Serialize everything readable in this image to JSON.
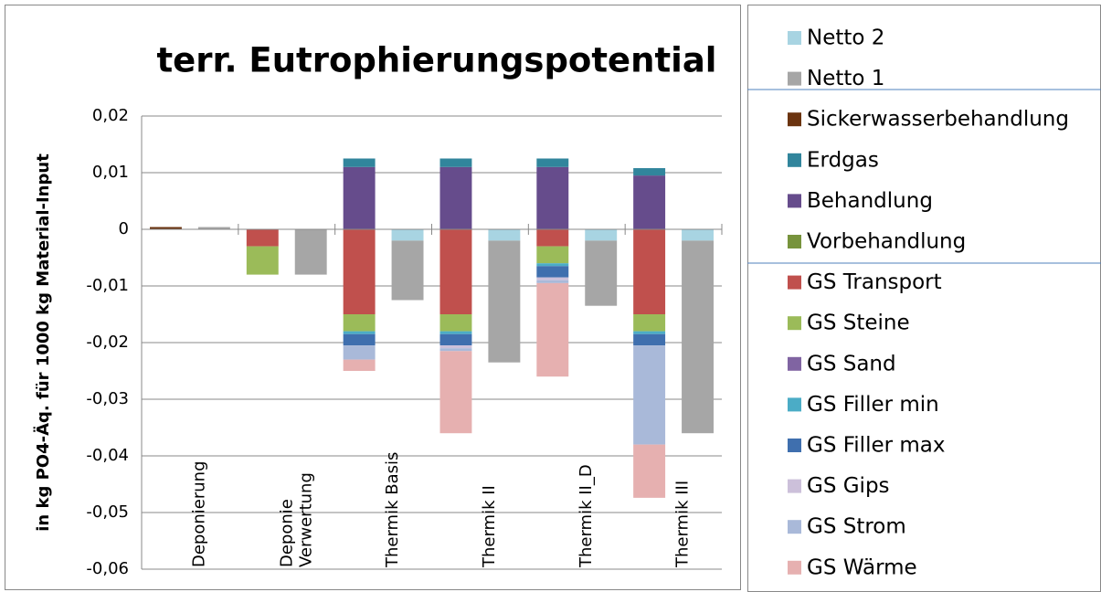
{
  "chart_data": {
    "type": "stacked-bar",
    "title": "terr. Eutrophierungspotential",
    "y_label": "in kg PO4-Äq. für 1000 kg Material-Input",
    "categories": [
      null,
      "Deponierung",
      null,
      "Deponie Verwertung",
      null,
      "Thermik Basis",
      null,
      "Thermik II",
      null,
      "Thermik II_D",
      null,
      "Thermik III"
    ],
    "ylim": [
      -0.06,
      0.02
    ],
    "yticks": [
      {
        "value": -0.06,
        "label": "-0,06"
      },
      {
        "value": -0.05,
        "label": "-0,05"
      },
      {
        "value": -0.04,
        "label": "-0,04"
      },
      {
        "value": -0.03,
        "label": "-0,03"
      },
      {
        "value": -0.02,
        "label": "-0,02"
      },
      {
        "value": -0.01,
        "label": "-0,01"
      },
      0,
      {
        "value": 0.01,
        "label": "0,01"
      },
      {
        "value": 0.02,
        "label": "0,02"
      }
    ],
    "grid": true,
    "legend": "right",
    "series": [
      {
        "name": "Netto 2",
        "color": "#a8d4e2",
        "values": [
          0,
          0,
          0,
          0,
          0,
          -0.002,
          0,
          -0.002,
          0,
          -0.002,
          0,
          -0.002
        ]
      },
      {
        "name": "Netto 1",
        "color": "#a6a6a6",
        "values": [
          0,
          0.0004,
          0,
          -0.008,
          0,
          -0.0105,
          0,
          -0.0215,
          0,
          -0.0115,
          0,
          -0.034
        ]
      },
      {
        "name": "Sickerwasserbehandlung",
        "color": "#6b3410",
        "values": [
          0.0004,
          0,
          0,
          0,
          0,
          0,
          0,
          0,
          0,
          0,
          0,
          0
        ]
      },
      {
        "name": "Erdgas",
        "color": "#31859c",
        "values": [
          0,
          0,
          0,
          0,
          0.0015,
          0,
          0.0015,
          0,
          0.0015,
          0,
          0.0013,
          0
        ]
      },
      {
        "name": "Behandlung",
        "color": "#664c8c",
        "values": [
          0,
          0,
          0,
          0,
          0.011,
          0,
          0.011,
          0,
          0.011,
          0,
          0.0095,
          0
        ]
      },
      {
        "name": "Vorbehandlung",
        "color": "#77933c",
        "values": [
          0,
          0,
          0,
          0,
          0,
          0,
          0,
          0,
          0,
          0,
          0,
          0
        ]
      },
      {
        "name": "GS Transport",
        "color": "#c0504d",
        "values": [
          0,
          0,
          -0.003,
          0,
          -0.015,
          0,
          -0.015,
          0,
          -0.003,
          0,
          -0.015,
          0
        ]
      },
      {
        "name": "GS Steine",
        "color": "#9bbb59",
        "values": [
          0,
          0,
          -0.005,
          0,
          -0.003,
          0,
          -0.003,
          0,
          -0.003,
          0,
          -0.003,
          0
        ]
      },
      {
        "name": "GS Sand",
        "color": "#8064a2",
        "values": [
          0,
          0,
          0,
          0,
          0,
          0,
          0,
          0,
          0,
          0,
          0,
          0
        ]
      },
      {
        "name": "GS Filler min",
        "color": "#4bacc6",
        "values": [
          0,
          0,
          0,
          0,
          -0.0005,
          0,
          -0.0005,
          0,
          -0.0005,
          0,
          -0.0005,
          0
        ]
      },
      {
        "name": "GS Filler max",
        "color": "#3f6fae",
        "values": [
          0,
          0,
          0,
          0,
          -0.002,
          0,
          -0.002,
          0,
          -0.002,
          0,
          -0.002,
          0
        ]
      },
      {
        "name": "GS Gips",
        "color": "#ccc0da",
        "values": [
          0,
          0,
          0,
          0,
          0,
          0,
          -0.0005,
          0,
          -0.0005,
          0,
          0,
          0
        ]
      },
      {
        "name": "GS Strom",
        "color": "#a9b9d9",
        "values": [
          0,
          0,
          0,
          0,
          -0.0025,
          0,
          -0.0005,
          0,
          -0.0005,
          0,
          -0.0175,
          0
        ]
      },
      {
        "name": "GS Wärme",
        "color": "#e6b0b0",
        "values": [
          0,
          0,
          0,
          0,
          -0.002,
          0,
          -0.0145,
          0,
          -0.0165,
          0,
          -0.0094,
          0
        ]
      }
    ]
  }
}
